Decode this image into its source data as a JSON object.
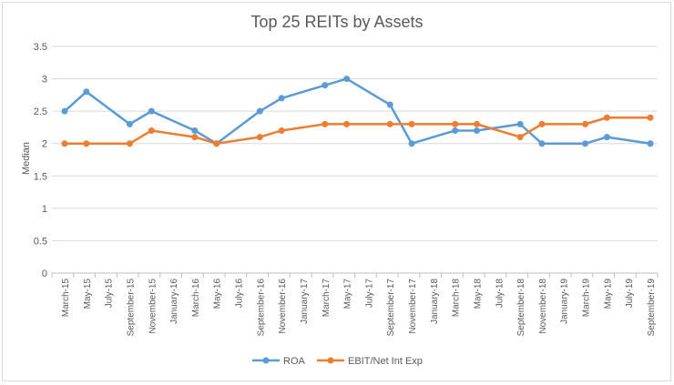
{
  "chart_data": {
    "type": "line",
    "title": "Top 25 REITs by Assets",
    "xlabel": "",
    "ylabel": "Median",
    "ylim": [
      0,
      3.5
    ],
    "yticks": [
      0,
      0.5,
      1,
      1.5,
      2,
      2.5,
      3,
      3.5
    ],
    "grid": true,
    "legend_position": "bottom",
    "categories": [
      "March-15",
      "May-15",
      "July-15",
      "September-15",
      "November-15",
      "January-16",
      "March-16",
      "May-16",
      "July-16",
      "September-16",
      "November-16",
      "January-17",
      "March-17",
      "May-17",
      "July-17",
      "September-17",
      "November-17",
      "January-18",
      "March-18",
      "May-18",
      "July-18",
      "September-18",
      "November-18",
      "January-19",
      "March-19",
      "May-19",
      "July-19",
      "September-19"
    ],
    "series": [
      {
        "name": "ROA",
        "color": "#5b9bd5",
        "points": [
          {
            "x": "March-15",
            "y": 2.5
          },
          {
            "x": "May-15",
            "y": 2.8
          },
          {
            "x": "September-15",
            "y": 2.3
          },
          {
            "x": "November-15",
            "y": 2.5
          },
          {
            "x": "March-16",
            "y": 2.2
          },
          {
            "x": "May-16",
            "y": 2.0
          },
          {
            "x": "September-16",
            "y": 2.5
          },
          {
            "x": "November-16",
            "y": 2.7
          },
          {
            "x": "March-17",
            "y": 2.9
          },
          {
            "x": "May-17",
            "y": 3.0
          },
          {
            "x": "September-17",
            "y": 2.6
          },
          {
            "x": "November-17",
            "y": 2.0
          },
          {
            "x": "March-18",
            "y": 2.2
          },
          {
            "x": "May-18",
            "y": 2.2
          },
          {
            "x": "September-18",
            "y": 2.3
          },
          {
            "x": "November-18",
            "y": 2.0
          },
          {
            "x": "March-19",
            "y": 2.0
          },
          {
            "x": "May-19",
            "y": 2.1
          },
          {
            "x": "September-19",
            "y": 2.0
          }
        ]
      },
      {
        "name": "EBIT/Net Int Exp",
        "color": "#ed7d31",
        "points": [
          {
            "x": "March-15",
            "y": 2.0
          },
          {
            "x": "May-15",
            "y": 2.0
          },
          {
            "x": "September-15",
            "y": 2.0
          },
          {
            "x": "November-15",
            "y": 2.2
          },
          {
            "x": "March-16",
            "y": 2.1
          },
          {
            "x": "May-16",
            "y": 2.0
          },
          {
            "x": "September-16",
            "y": 2.1
          },
          {
            "x": "November-16",
            "y": 2.2
          },
          {
            "x": "March-17",
            "y": 2.3
          },
          {
            "x": "May-17",
            "y": 2.3
          },
          {
            "x": "September-17",
            "y": 2.3
          },
          {
            "x": "November-17",
            "y": 2.3
          },
          {
            "x": "March-18",
            "y": 2.3
          },
          {
            "x": "May-18",
            "y": 2.3
          },
          {
            "x": "September-18",
            "y": 2.1
          },
          {
            "x": "November-18",
            "y": 2.3
          },
          {
            "x": "March-19",
            "y": 2.3
          },
          {
            "x": "May-19",
            "y": 2.4
          },
          {
            "x": "September-19",
            "y": 2.4
          }
        ]
      }
    ]
  }
}
